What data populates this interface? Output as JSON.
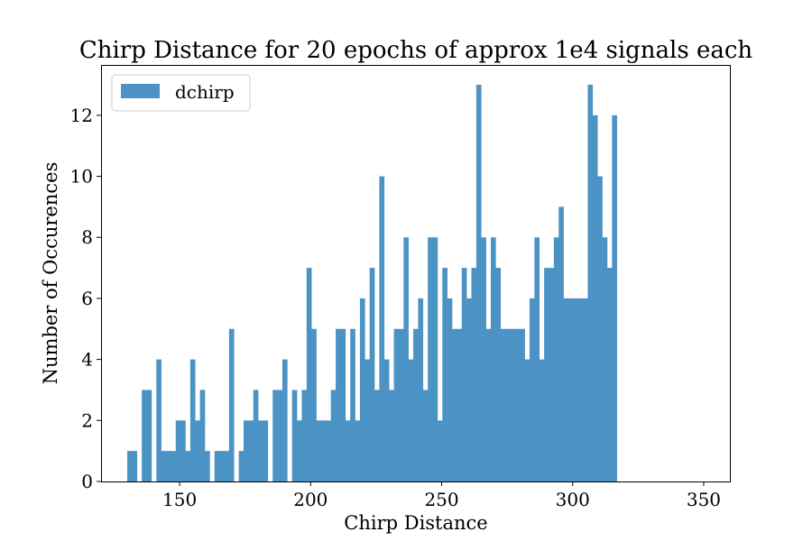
{
  "chart_data": {
    "type": "bar",
    "title": "Chirp Distance for 20 epochs of approx 1e4 signals each",
    "xlabel": "Chirp Distance",
    "ylabel": "Number of Occurences",
    "xlim": [
      120,
      360
    ],
    "ylim": [
      0,
      13.65
    ],
    "xticks": [
      150,
      200,
      250,
      300,
      350
    ],
    "yticks": [
      0,
      2,
      4,
      6,
      8,
      10,
      12
    ],
    "bin_start": 130,
    "bin_width": 1.85,
    "legend": {
      "placement": "top-left",
      "entries": [
        "dchirp"
      ]
    },
    "grid": false,
    "series": [
      {
        "name": "dchirp",
        "color": "#4c93c5",
        "values": [
          1,
          1,
          0,
          3,
          3,
          0,
          4,
          1,
          1,
          1,
          2,
          2,
          1,
          4,
          2,
          3,
          1,
          0,
          1,
          1,
          1,
          5,
          0,
          1,
          2,
          2,
          3,
          2,
          2,
          0,
          3,
          3,
          4,
          0,
          3,
          2,
          3,
          7,
          5,
          2,
          2,
          2,
          3,
          5,
          5,
          2,
          5,
          2,
          6,
          4,
          7,
          3,
          10,
          4,
          3,
          5,
          5,
          8,
          4,
          5,
          6,
          3,
          8,
          8,
          2,
          7,
          6,
          5,
          5,
          7,
          6,
          7,
          13,
          8,
          5,
          8,
          7,
          5,
          5,
          5,
          5,
          5,
          4,
          6,
          8,
          4,
          7,
          7,
          8,
          9,
          6,
          6,
          6,
          6,
          6,
          13,
          12,
          10,
          8,
          7,
          12
        ]
      }
    ]
  }
}
